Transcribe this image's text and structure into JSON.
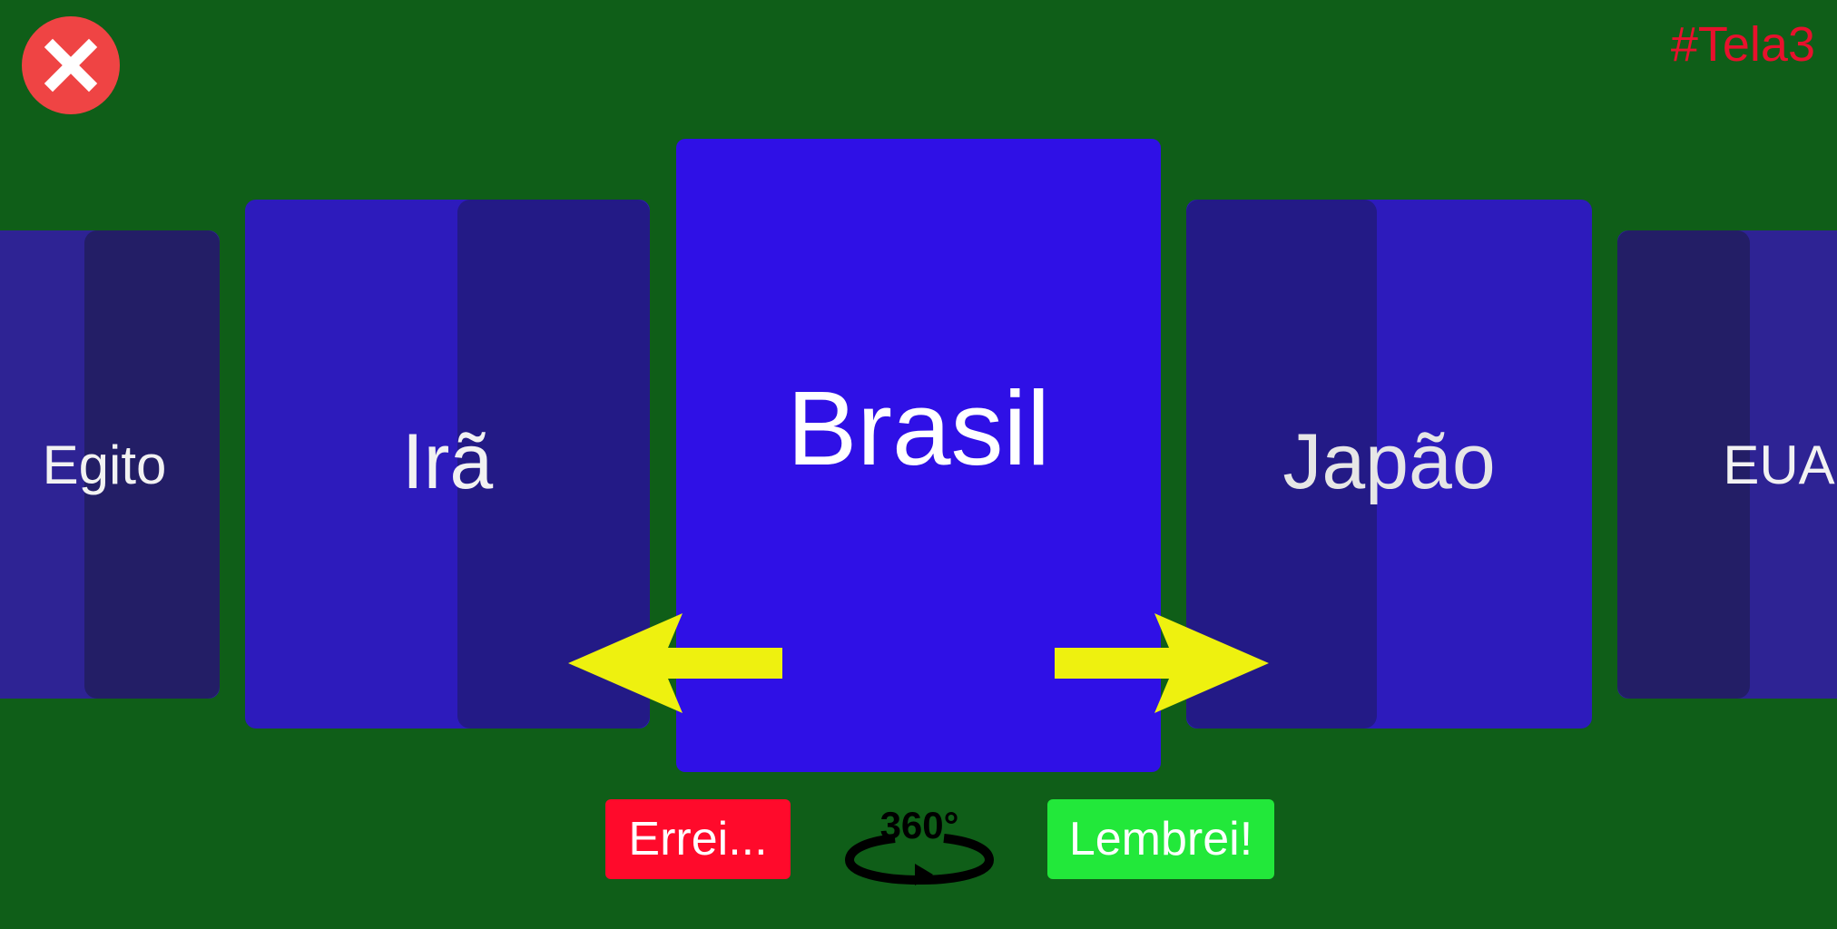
{
  "screen_tag": "#Tela3",
  "cards": {
    "egito": "Egito",
    "ira": "Irã",
    "brasil": "Brasil",
    "japao": "Japão",
    "eua": "EUA"
  },
  "buttons": {
    "errei": "Errei...",
    "lembrei": "Lembrei!",
    "rotate": "360°"
  },
  "icons": {
    "close": "close-icon",
    "left": "arrow-left-icon",
    "right": "arrow-right-icon",
    "rotate": "rotate-360-icon"
  },
  "colors": {
    "background": "#0f5e18",
    "card_active": "#2f10e6",
    "card_side": "#2d1bbc",
    "close": "#ef4444",
    "errei": "#ff0a2b",
    "lembrei": "#22e83a",
    "arrows": "#eef10f",
    "tag": "#e8112d"
  }
}
